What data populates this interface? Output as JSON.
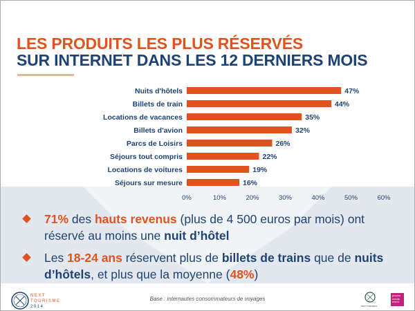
{
  "title_line1": "LES PRODUITS LES PLUS RÉSERVÉS",
  "title_line2": "SUR INTERNET DANS LES 12 DERNIERS MOIS",
  "chart_data": {
    "type": "bar",
    "orientation": "horizontal",
    "categories": [
      "Nuits d'hôtels",
      "Billets de train",
      "Locations de vacances",
      "Billets d'avion",
      "Parcs de Loisirs",
      "Séjours tout compris",
      "Locations de voitures",
      "Séjours sur mesure"
    ],
    "values": [
      47,
      44,
      35,
      32,
      26,
      22,
      19,
      16
    ],
    "value_labels": [
      "47%",
      "44%",
      "35%",
      "32%",
      "26%",
      "22%",
      "19%",
      "16%"
    ],
    "xlim": [
      0,
      60
    ],
    "xticks": [
      "0%",
      "10%",
      "20%",
      "30%",
      "40%",
      "50%",
      "60%"
    ],
    "bar_color": "#e0521e",
    "grid": false
  },
  "bullets": [
    {
      "p1": "71%",
      "p2": " des ",
      "p3": "hauts revenus",
      "p4": " (plus de 4 500 euros par mois) ont réservé au moins une ",
      "p5": "nuit d’hôtel"
    },
    {
      "p1": "Les ",
      "p2": "18-24 ans",
      "p3": " réservent plus de ",
      "p4": "billets de trains",
      "p5": " que de ",
      "p6": "nuits d’hôtels",
      "p7": ", et plus que la moyenne (",
      "p8": "48%",
      "p9": ")"
    }
  ],
  "footer": {
    "base": "Base : internautes consommateurs de voyages",
    "logo_line1": "NEXT",
    "logo_line2": "TOURISME",
    "logo_line3": "2014",
    "next_content": "NEXT CONTENT",
    "proche": "proche media event"
  }
}
